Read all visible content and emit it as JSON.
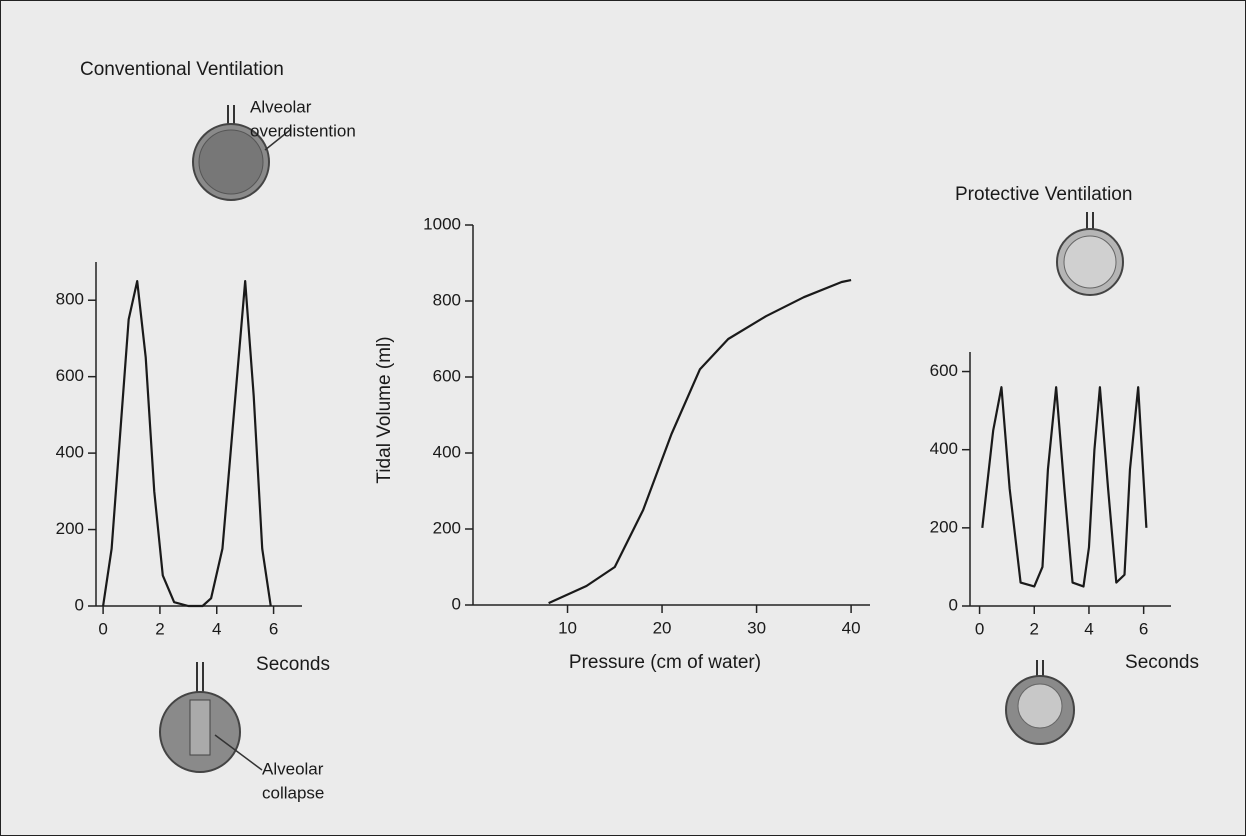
{
  "chart_data": [
    {
      "type": "line",
      "title": "Conventional Ventilation",
      "x_label": "Seconds",
      "x": [
        0,
        0.3,
        0.6,
        0.9,
        1.2,
        1.5,
        1.8,
        2.1,
        2.5,
        3,
        3.5,
        3.8,
        4.2,
        4.6,
        5,
        5.3,
        5.6,
        5.9
      ],
      "series": [
        {
          "color": "#1a1a1a",
          "values": [
            0,
            150,
            450,
            750,
            850,
            650,
            300,
            80,
            10,
            0,
            0,
            20,
            150,
            500,
            850,
            550,
            150,
            0
          ]
        }
      ],
      "xlim": [
        -0.25,
        7
      ],
      "xticks": [
        0,
        2,
        4,
        6
      ],
      "ylim": [
        0,
        900
      ],
      "yticks": [
        0,
        200,
        400,
        600,
        800
      ],
      "annotations": [
        {
          "text": [
            "Alveolar",
            "overdistention"
          ]
        },
        {
          "text": [
            "Alveolar",
            "collapse"
          ]
        }
      ]
    },
    {
      "type": "line",
      "x_label": "Pressure (cm of water)",
      "y_label": "Tidal Volume (ml)",
      "x": [
        8,
        12,
        15,
        18,
        21,
        24,
        27,
        31,
        35,
        39,
        40
      ],
      "series": [
        {
          "color": "#1a1a1a",
          "values": [
            5,
            50,
            100,
            250,
            450,
            620,
            700,
            760,
            810,
            850,
            855
          ]
        }
      ],
      "xlim": [
        0,
        42
      ],
      "xticks": [
        10,
        20,
        30,
        40
      ],
      "ylim": [
        0,
        1000
      ],
      "yticks": [
        0,
        200,
        400,
        600,
        800,
        1000
      ]
    },
    {
      "type": "line",
      "title": "Protective Ventilation",
      "x_label": "Seconds",
      "x": [
        0.1,
        0.5,
        0.8,
        1.1,
        1.5,
        2.0,
        2.3,
        2.5,
        2.8,
        3.1,
        3.4,
        3.8,
        4.0,
        4.2,
        4.4,
        4.7,
        5.0,
        5.3,
        5.5,
        5.8,
        6.1
      ],
      "series": [
        {
          "color": "#1a1a1a",
          "values": [
            200,
            450,
            560,
            300,
            60,
            50,
            100,
            350,
            560,
            300,
            60,
            50,
            150,
            400,
            560,
            300,
            60,
            80,
            350,
            560,
            200
          ]
        }
      ],
      "xlim": [
        -0.35,
        7
      ],
      "xticks": [
        0,
        2,
        4,
        6
      ],
      "ylim": [
        0,
        650
      ],
      "yticks": [
        0,
        200,
        400,
        600
      ]
    }
  ]
}
